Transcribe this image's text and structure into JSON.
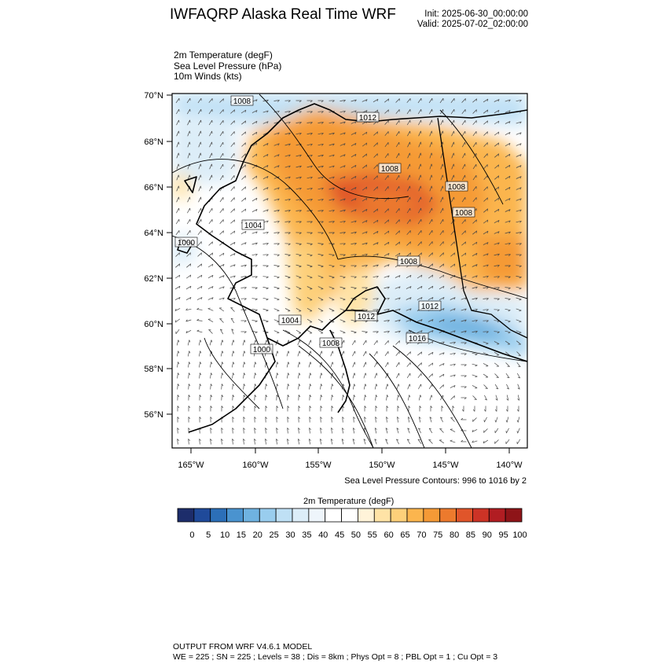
{
  "header": {
    "title": "IWFAQRP Alaska Real Time WRF",
    "init": "Init: 2025-06-30_00:00:00",
    "valid": "Valid: 2025-07-02_02:00:00"
  },
  "fields": [
    "2m Temperature   (degF)",
    "Sea Level Pressure   (hPa)",
    "10m Winds   (kts)"
  ],
  "map": {
    "lat_labels": [
      "70°N",
      "68°N",
      "66°N",
      "64°N",
      "62°N",
      "60°N",
      "58°N",
      "56°N"
    ],
    "lon_labels": [
      "165°W",
      "160°W",
      "155°W",
      "150°W",
      "145°W",
      "140°W"
    ],
    "isobar_labels": [
      "1008",
      "1012",
      "1008",
      "1008",
      "1008",
      "1004",
      "1000",
      "1008",
      "1012",
      "1004",
      "1012",
      "1016",
      "1000",
      "1008"
    ],
    "contour_note": "Sea Level Pressure Contours: 996 to 1016 by 2"
  },
  "colorbar": {
    "title": "2m Temperature  (degF)",
    "labels": [
      "0",
      "5",
      "10",
      "15",
      "20",
      "25",
      "30",
      "35",
      "40",
      "45",
      "50",
      "55",
      "60",
      "65",
      "70",
      "75",
      "80",
      "85",
      "90",
      "95",
      "100"
    ],
    "colors": [
      "#1d2d6b",
      "#1f4a9a",
      "#2c6fb8",
      "#4a93cf",
      "#6fb2e0",
      "#99cdee",
      "#bfe0f5",
      "#dcedf8",
      "#eef5fb",
      "#ffffff",
      "#ffffff",
      "#fff3d9",
      "#ffe3a6",
      "#fdd07a",
      "#fbb54e",
      "#f59a36",
      "#ec7a2d",
      "#e0552a",
      "#cc3326",
      "#b11d22",
      "#8e1418"
    ]
  },
  "footer": {
    "line1": "OUTPUT FROM WRF V4.6.1 MODEL",
    "line2": "WE = 225 ; SN = 225 ; Levels = 38 ; Dis = 8km ; Phys Opt = 8 ; PBL Opt = 1 ; Cu Opt = 3"
  }
}
